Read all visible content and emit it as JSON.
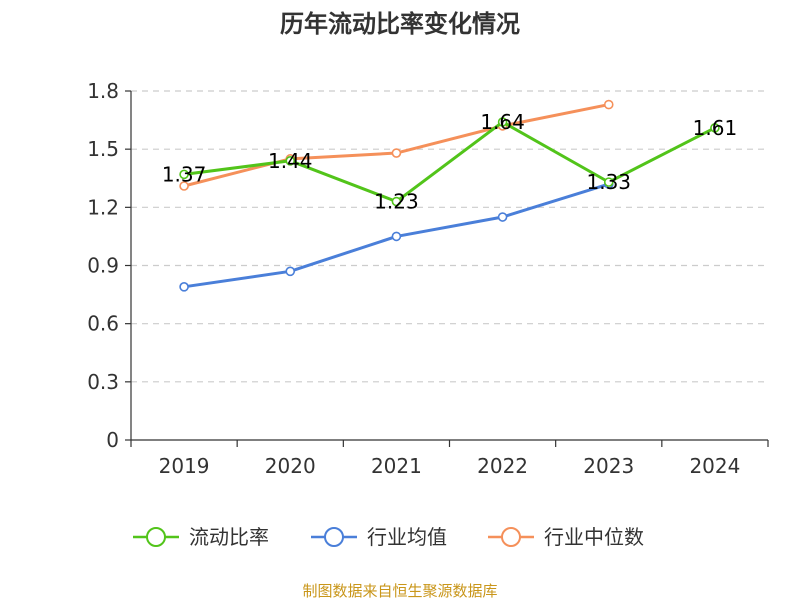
{
  "chart_data": {
    "type": "line",
    "title": "历年流动比率变化情况",
    "categories": [
      "2019",
      "2020",
      "2021",
      "2022",
      "2023",
      "2024"
    ],
    "y_ticks": [
      "0",
      "0.3",
      "0.6",
      "0.9",
      "1.2",
      "1.5",
      "1.8"
    ],
    "ylim": [
      0,
      1.8
    ],
    "grid": true,
    "legend_position": "bottom",
    "series": [
      {
        "name": "流动比率",
        "color": "#52c41a",
        "values": [
          1.37,
          1.44,
          1.23,
          1.64,
          1.33,
          1.61
        ],
        "labels": [
          "1.37",
          "1.44",
          "1.23",
          "1.64",
          "1.33",
          "1.61"
        ]
      },
      {
        "name": "行业均值",
        "color": "#4a7fd9",
        "values": [
          0.79,
          0.87,
          1.05,
          1.15,
          1.32,
          null
        ]
      },
      {
        "name": "行业中位数",
        "color": "#f5905a",
        "values": [
          1.31,
          1.45,
          1.48,
          1.62,
          1.73,
          null
        ]
      }
    ],
    "source": "制图数据来自恒生聚源数据库",
    "source_color": "#c9961a"
  }
}
